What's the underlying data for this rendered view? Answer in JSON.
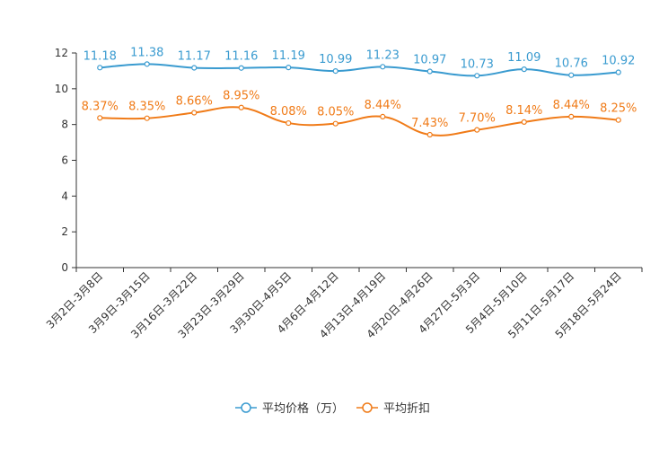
{
  "chart_data": {
    "type": "line",
    "title": "",
    "xlabel": "",
    "ylabel": "",
    "categories": [
      "3月2日-3月8日",
      "3月9日-3月15日",
      "3月16日-3月22日",
      "3月23日-3月29日",
      "3月30日-4月5日",
      "4月6日-4月12日",
      "4月13日-4月19日",
      "4月20日-4月26日",
      "4月27日-5月3日",
      "5月4日-5月10日",
      "5月11日-5月17日",
      "5月18日-5月24日"
    ],
    "ylim": [
      0,
      12
    ],
    "yticks": [
      0,
      2,
      4,
      6,
      8,
      10,
      12
    ],
    "grid": false,
    "legend_position": "bottom-center",
    "series": [
      {
        "name": "平均价格（万）",
        "color": "#3a9bd0",
        "values": [
          11.18,
          11.38,
          11.17,
          11.16,
          11.19,
          10.99,
          11.23,
          10.97,
          10.73,
          11.09,
          10.76,
          10.92
        ],
        "labels": [
          "11.18",
          "11.38",
          "11.17",
          "11.16",
          "11.19",
          "10.99",
          "11.23",
          "10.97",
          "10.73",
          "11.09",
          "10.76",
          "10.92"
        ]
      },
      {
        "name": "平均折扣",
        "color": "#f07b18",
        "values": [
          8.37,
          8.35,
          8.66,
          8.95,
          8.08,
          8.05,
          8.44,
          7.43,
          7.7,
          8.14,
          8.44,
          8.25
        ],
        "labels": [
          "8.37%",
          "8.35%",
          "8.66%",
          "8.95%",
          "8.08%",
          "8.05%",
          "8.44%",
          "7.43%",
          "7.70%",
          "8.14%",
          "8.44%",
          "8.25%"
        ]
      }
    ]
  }
}
